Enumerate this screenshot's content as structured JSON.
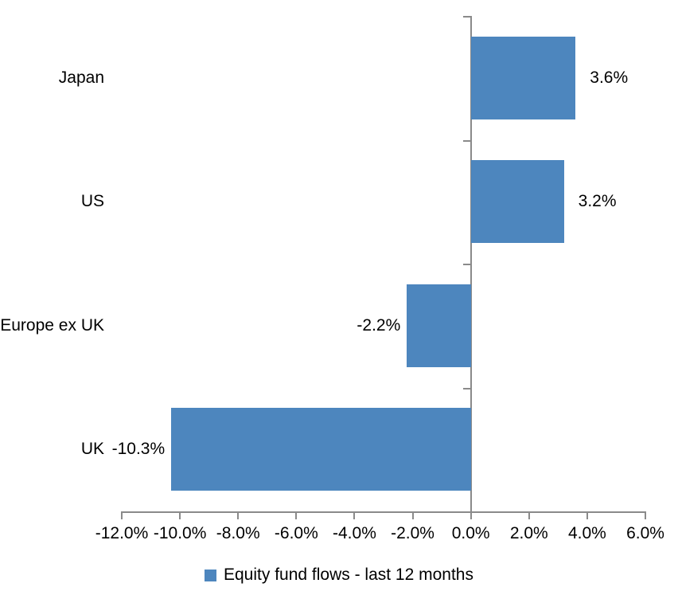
{
  "chart_data": {
    "type": "bar",
    "orientation": "horizontal",
    "title": "",
    "categories": [
      "Japan",
      "US",
      "Europe ex UK",
      "UK"
    ],
    "values": [
      3.6,
      3.2,
      -2.2,
      -10.3
    ],
    "value_labels": [
      "3.6%",
      "3.2%",
      "-2.2%",
      "-10.3%"
    ],
    "x_ticks": [
      {
        "value": -12,
        "label": "-12.0%"
      },
      {
        "value": -10,
        "label": "-10.0%"
      },
      {
        "value": -8,
        "label": "-8.0%"
      },
      {
        "value": -6,
        "label": "-6.0%"
      },
      {
        "value": -4,
        "label": "-4.0%"
      },
      {
        "value": -2,
        "label": "-2.0%"
      },
      {
        "value": 0,
        "label": "0.0%"
      },
      {
        "value": 2,
        "label": "2.0%"
      },
      {
        "value": 4,
        "label": "4.0%"
      },
      {
        "value": 6,
        "label": "6.0%"
      }
    ],
    "xlim": [
      -12,
      6
    ],
    "grid": false,
    "legend_position": "bottom",
    "legend": "Equity fund flows - last 12 months",
    "colors": {
      "bar": "#4D86BE",
      "axis": "#8A8A8A",
      "text": "#000000",
      "background": "#ffffff"
    }
  }
}
